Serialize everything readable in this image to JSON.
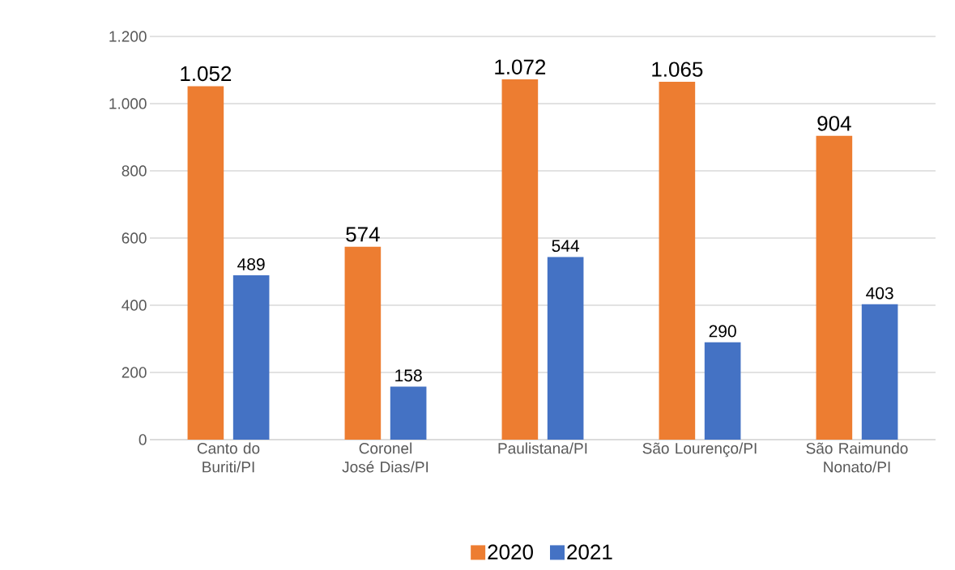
{
  "chart_data": {
    "type": "bar",
    "categories": [
      "Canto do Buriti/PI",
      "Coronel José Dias/PI",
      "Paulistana/PI",
      "São Lourenço/PI",
      "São Raimundo Nonato/PI"
    ],
    "series": [
      {
        "name": "2020",
        "color": "#ed7d31",
        "values": [
          1052,
          574,
          1072,
          1065,
          904
        ],
        "value_labels": [
          "1.052",
          "574",
          "1.072",
          "1.065",
          "904"
        ]
      },
      {
        "name": "2021",
        "color": "#4472c4",
        "values": [
          489,
          158,
          544,
          290,
          403
        ],
        "value_labels": [
          "489",
          "158",
          "544",
          "290",
          "403"
        ]
      }
    ],
    "ylim": [
      0,
      1200
    ],
    "yticks": [
      0,
      200,
      400,
      600,
      800,
      {
        "value": 1000,
        "label": "1.000"
      },
      {
        "value": 1200,
        "label": "1.200"
      }
    ],
    "grid": "y",
    "legend": "bottom"
  }
}
